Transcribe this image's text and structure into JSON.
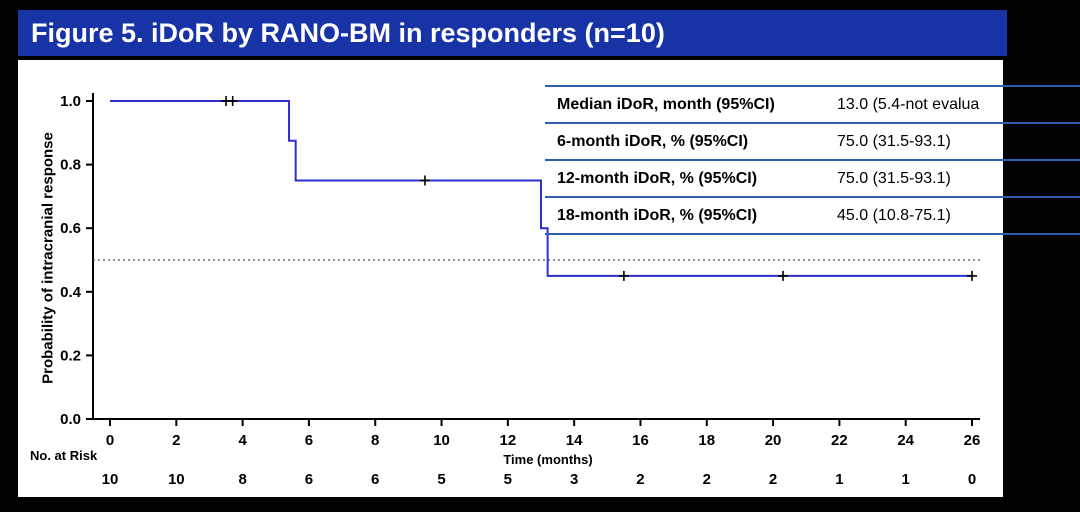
{
  "title": "Figure 5. iDoR by RANO-BM in responders (n=10)",
  "colors": {
    "title_bar": "#1733a6",
    "curve": "#2f2fd0",
    "table_line": "#2e5fae",
    "background": "#000000",
    "panel": "#ffffff",
    "reference_line": "#555555"
  },
  "stats_table": {
    "rows": [
      {
        "label": "Median iDoR, month (95%CI)",
        "value": "13.0 (5.4-not evalua"
      },
      {
        "label": "6-month iDoR, % (95%CI)",
        "value": "75.0 (31.5-93.1)"
      },
      {
        "label": "12-month iDoR, % (95%CI)",
        "value": "75.0 (31.5-93.1)"
      },
      {
        "label": "18-month iDoR, % (95%CI)",
        "value": "45.0 (10.8-75.1)"
      }
    ]
  },
  "risk_table": {
    "heading": "No. at Risk",
    "values": [
      10,
      10,
      8,
      6,
      6,
      5,
      5,
      3,
      2,
      2,
      2,
      1,
      1,
      0
    ]
  },
  "chart_data": {
    "type": "line",
    "subtype": "kaplan-meier-step",
    "title": "Figure 5. iDoR by RANO-BM in responders (n=10)",
    "xlabel": "Time (months)",
    "ylabel": "Probability of intracranial response",
    "xlim": [
      0,
      26
    ],
    "ylim": [
      0,
      1.0
    ],
    "xticks": [
      0,
      2,
      4,
      6,
      8,
      10,
      12,
      14,
      16,
      18,
      20,
      22,
      24,
      26
    ],
    "yticks": [
      0,
      0.2,
      0.4,
      0.6,
      0.8,
      1.0
    ],
    "ytick_labels": [
      "0.0",
      "0.2",
      "0.4",
      "0.6",
      "0.8",
      "1.0"
    ],
    "grid": false,
    "legend": "none",
    "reference_line_y": 0.5,
    "series": [
      {
        "name": "iDoR by RANO-BM (responders)",
        "step_points": [
          [
            0,
            1.0
          ],
          [
            5.4,
            1.0
          ],
          [
            5.4,
            0.875
          ],
          [
            5.6,
            0.875
          ],
          [
            5.6,
            0.75
          ],
          [
            13.0,
            0.75
          ],
          [
            13.0,
            0.6
          ],
          [
            13.2,
            0.6
          ],
          [
            13.2,
            0.45
          ],
          [
            26,
            0.45
          ]
        ],
        "censor_marks": [
          [
            3.5,
            1.0
          ],
          [
            3.7,
            1.0
          ],
          [
            9.5,
            0.75
          ],
          [
            15.5,
            0.45
          ],
          [
            20.3,
            0.45
          ],
          [
            26,
            0.45
          ]
        ]
      }
    ]
  }
}
